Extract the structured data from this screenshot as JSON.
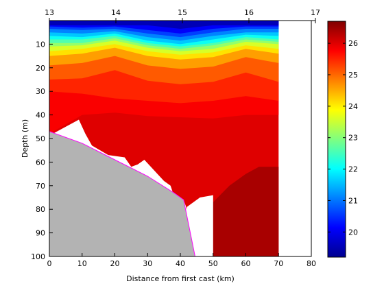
{
  "chart_data": {
    "type": "heatmap",
    "xlabel": "Distance from first cast (km)",
    "ylabel": "Depth (m)",
    "xlim": [
      0,
      80
    ],
    "ylim": [
      100,
      0
    ],
    "x_ticks": [
      0,
      10,
      20,
      30,
      40,
      50,
      60,
      70,
      80
    ],
    "y_ticks": [
      10,
      20,
      30,
      40,
      50,
      60,
      70,
      80,
      90,
      100
    ],
    "top_axis": {
      "xlim": [
        13,
        17
      ],
      "ticks": [
        13,
        14,
        15,
        16,
        17
      ]
    },
    "colorbar": {
      "min": 19.2,
      "max": 26.7,
      "ticks": [
        20,
        21,
        22,
        23,
        24,
        25,
        26
      ],
      "colormap": "jet"
    },
    "data_extent_km": [
      0,
      70
    ],
    "bathymetry": {
      "color": "#ff00ff",
      "fill": "#b3b3b3",
      "points": [
        [
          0,
          47
        ],
        [
          10,
          52
        ],
        [
          20,
          59
        ],
        [
          30,
          66
        ],
        [
          38,
          73
        ],
        [
          41,
          76
        ],
        [
          44.5,
          100
        ]
      ]
    },
    "isotherm_profiles": {
      "x": [
        0,
        10,
        20,
        30,
        40,
        50,
        60,
        70
      ],
      "levels": [
        {
          "t": 19.6,
          "depth": [
            2.0,
            2.0,
            2.0,
            2.0,
            3.5,
            2.0,
            2.0,
            2.0
          ]
        },
        {
          "t": 20.1,
          "depth": [
            2.5,
            3.0,
            2.5,
            4.0,
            5.5,
            3.5,
            2.5,
            2.5
          ]
        },
        {
          "t": 20.6,
          "depth": [
            3.5,
            4.0,
            3.5,
            5.5,
            7.0,
            5.0,
            3.5,
            3.5
          ]
        },
        {
          "t": 21.1,
          "depth": [
            5.0,
            5.5,
            4.5,
            7.0,
            8.5,
            6.5,
            5.0,
            5.0
          ]
        },
        {
          "t": 21.6,
          "depth": [
            6.5,
            7.0,
            5.5,
            8.5,
            10.0,
            8.0,
            6.0,
            6.5
          ]
        },
        {
          "t": 22.1,
          "depth": [
            8.0,
            8.0,
            6.5,
            9.5,
            11.0,
            9.5,
            7.0,
            8.0
          ]
        },
        {
          "t": 22.6,
          "depth": [
            9.5,
            9.5,
            7.5,
            10.5,
            12.0,
            10.5,
            8.0,
            9.0
          ]
        },
        {
          "t": 23.1,
          "depth": [
            11.0,
            10.5,
            8.5,
            11.5,
            13.0,
            12.0,
            9.0,
            10.0
          ]
        },
        {
          "t": 23.6,
          "depth": [
            13.0,
            12.0,
            10.0,
            13.0,
            14.5,
            13.5,
            10.5,
            12.0
          ]
        },
        {
          "t": 24.1,
          "depth": [
            15.0,
            14.0,
            11.5,
            15.0,
            16.5,
            15.5,
            12.0,
            14.0
          ]
        },
        {
          "t": 24.6,
          "depth": [
            19.0,
            18.0,
            15.0,
            19.0,
            20.5,
            19.5,
            15.5,
            18.0
          ]
        },
        {
          "t": 25.1,
          "depth": [
            25.0,
            24.5,
            21.0,
            25.5,
            27.0,
            26.0,
            22.0,
            26.0
          ]
        },
        {
          "t": 25.5,
          "depth": [
            30.0,
            31.0,
            33.0,
            34.0,
            35.0,
            34.0,
            32.0,
            34.0
          ]
        },
        {
          "t": 25.8,
          "depth": [
            48.0,
            40.0,
            39.0,
            40.5,
            41.0,
            41.5,
            40.0,
            40.0
          ]
        }
      ],
      "deep_layer": {
        "t": 26.4,
        "boundary": [
          [
            50,
            100
          ],
          [
            50,
            77
          ],
          [
            55,
            70
          ],
          [
            60,
            65
          ],
          [
            64,
            62
          ],
          [
            70,
            62
          ],
          [
            70,
            100
          ]
        ]
      }
    },
    "white_pockets": [
      [
        [
          1,
          100
        ],
        [
          1,
          48
        ],
        [
          9,
          42
        ],
        [
          11,
          48
        ],
        [
          13,
          53
        ],
        [
          18,
          57
        ],
        [
          23,
          58
        ],
        [
          25,
          62
        ],
        [
          27,
          61
        ],
        [
          29,
          59
        ],
        [
          31,
          62
        ],
        [
          35,
          68
        ],
        [
          37,
          70
        ],
        [
          38,
          74
        ],
        [
          41,
          76
        ],
        [
          42,
          80
        ],
        [
          44.5,
          100
        ]
      ],
      [
        [
          42,
          100
        ],
        [
          42,
          79
        ],
        [
          46,
          75
        ],
        [
          50,
          74
        ],
        [
          50,
          100
        ]
      ]
    ]
  }
}
